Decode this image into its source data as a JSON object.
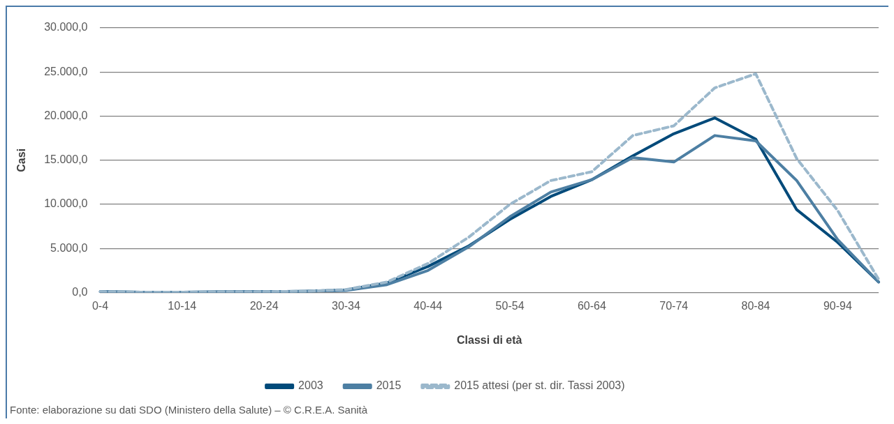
{
  "chart_data": {
    "type": "line",
    "xlabel": "Classi di età",
    "ylabel": "Casi",
    "categories": [
      "0-4",
      null,
      "10-14",
      null,
      "20-24",
      null,
      "30-34",
      null,
      "40-44",
      null,
      "50-54",
      null,
      "60-64",
      null,
      "70-74",
      null,
      "80-84",
      null,
      "90-94",
      null
    ],
    "series": [
      {
        "name": "2003",
        "color": "#004a7a",
        "line_style": "solid",
        "values": [
          100,
          50,
          50,
          80,
          100,
          150,
          300,
          1100,
          2960,
          5300,
          8300,
          10900,
          12800,
          15500,
          18000,
          19800,
          17400,
          9400,
          5700,
          1200
        ]
      },
      {
        "name": "2015",
        "color": "#4d7fa3",
        "line_style": "solid",
        "values": [
          100,
          50,
          50,
          80,
          100,
          150,
          250,
          900,
          2510,
          5200,
          8600,
          11400,
          12800,
          15300,
          14800,
          17800,
          17200,
          12700,
          6000,
          1200
        ]
      },
      {
        "name": "2015 attesi (per st. dir. Tassi 2003)",
        "color": "#9bb8cc",
        "line_style": "dashed",
        "values": [
          100,
          50,
          50,
          80,
          100,
          150,
          350,
          1200,
          3300,
          6300,
          10000,
          12700,
          13700,
          17800,
          18900,
          23200,
          24800,
          15200,
          9300,
          1500
        ]
      }
    ],
    "ylim": [
      0,
      30000
    ],
    "yticks": [
      {
        "value": 0,
        "label": "0,0"
      },
      {
        "value": 5000,
        "label": "5.000,0"
      },
      {
        "value": 10000,
        "label": "10.000,0"
      },
      {
        "value": 15000,
        "label": "15.000,0"
      },
      {
        "value": 20000,
        "label": "20.000,0"
      },
      {
        "value": 25000,
        "label": "25.000,0"
      },
      {
        "value": 30000,
        "label": "30.000,0"
      }
    ],
    "grid": "y",
    "legend": "bottom",
    "marker": "none",
    "annotations": [
      "Fonte: elaborazione su dati SDO (Ministero della Salute) – © C.R.E.A. Sanità"
    ]
  }
}
